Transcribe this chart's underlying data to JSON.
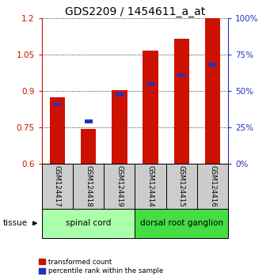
{
  "title": "GDS2209 / 1454611_a_at",
  "samples": [
    "GSM124417",
    "GSM124418",
    "GSM124419",
    "GSM124414",
    "GSM124415",
    "GSM124416"
  ],
  "group_labels": [
    "spinal cord",
    "dorsal root ganglion"
  ],
  "red_values": [
    0.875,
    0.745,
    0.905,
    1.065,
    1.115,
    1.2
  ],
  "blue_values": [
    0.845,
    0.775,
    0.885,
    0.93,
    0.965,
    1.01
  ],
  "ylim_left": [
    0.6,
    1.2
  ],
  "ylim_right": [
    0,
    100
  ],
  "yticks_left": [
    0.6,
    0.75,
    0.9,
    1.05,
    1.2
  ],
  "yticks_right": [
    0,
    25,
    50,
    75,
    100
  ],
  "bar_color_red": "#cc1100",
  "bar_color_blue": "#2233bb",
  "bar_width": 0.5,
  "group_color_left": "#aaffaa",
  "group_color_right": "#44dd44",
  "sample_box_color": "#cccccc",
  "title_fontsize": 10,
  "tick_fontsize": 7.5,
  "axis_color_left": "#cc1100",
  "axis_color_right": "#2233bb"
}
